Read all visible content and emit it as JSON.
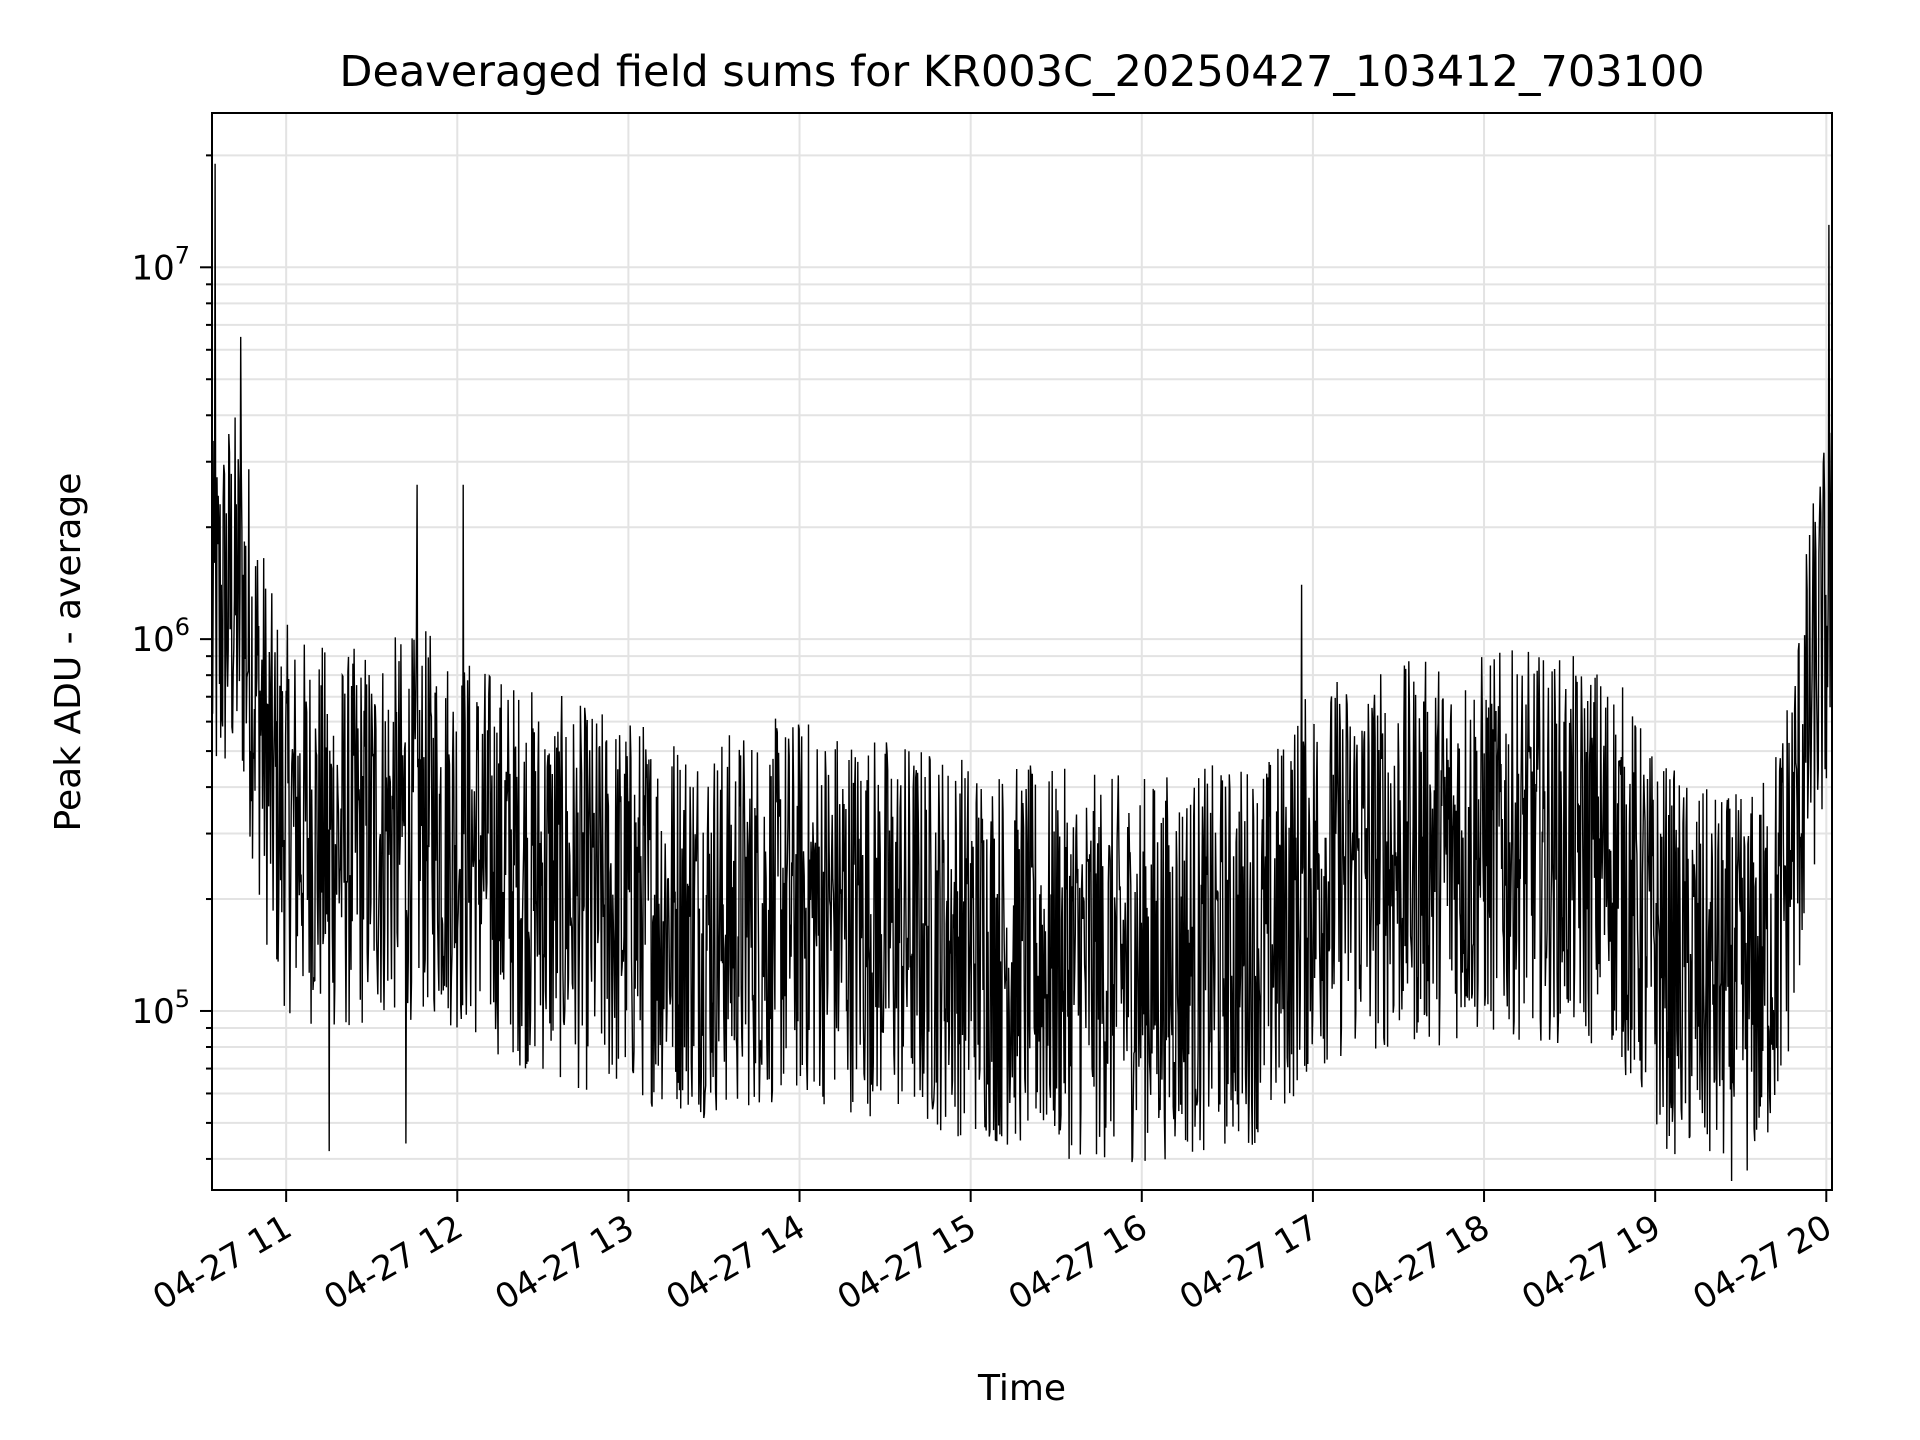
{
  "chart_data": {
    "type": "line",
    "title": "Deaveraged field sums for KR003C_20250427_103412_703100",
    "xlabel": "Time",
    "ylabel": "Peak ADU - average",
    "yscale": "log",
    "xlim": [
      "04-27 10:34",
      "04-27 20:02"
    ],
    "ylim": [
      33000,
      26000000
    ],
    "grid": true,
    "x_ticks": [
      "04-27 11",
      "04-27 12",
      "04-27 13",
      "04-27 14",
      "04-27 15",
      "04-27 16",
      "04-27 17",
      "04-27 18",
      "04-27 19",
      "04-27 20"
    ],
    "y_ticks": [
      {
        "base": "10",
        "exp": "5",
        "value": 100000
      },
      {
        "base": "10",
        "exp": "6",
        "value": 1000000
      },
      {
        "base": "10",
        "exp": "7",
        "value": 10000000
      }
    ],
    "line_color": "#000000",
    "grid_color": "#e3e3e3",
    "series": [
      {
        "x": [
          "04-27 10:34",
          "04-27 10:40",
          "04-27 10:45",
          "04-27 10:50",
          "04-27 10:55",
          "04-27 11:00",
          "04-27 11:10",
          "04-27 11:20",
          "04-27 11:30",
          "04-27 11:40",
          "04-27 11:50",
          "04-27 12:00",
          "04-27 12:15",
          "04-27 12:30",
          "04-27 12:45",
          "04-27 13:00",
          "04-27 13:15",
          "04-27 13:30",
          "04-27 13:45",
          "04-27 14:00",
          "04-27 14:15",
          "04-27 14:30",
          "04-27 14:45",
          "04-27 15:00",
          "04-27 15:15",
          "04-27 15:30",
          "04-27 15:45",
          "04-27 16:00",
          "04-27 16:15",
          "04-27 16:30",
          "04-27 16:45",
          "04-27 17:00",
          "04-27 17:15",
          "04-27 17:30",
          "04-27 17:45",
          "04-27 18:00",
          "04-27 18:15",
          "04-27 18:30",
          "04-27 18:45",
          "04-27 19:00",
          "04-27 19:15",
          "04-27 19:30",
          "04-27 19:35",
          "04-27 19:40",
          "04-27 19:45",
          "04-27 19:50",
          "04-27 19:55",
          "04-27 20:00",
          "04-27 20:02"
        ],
        "y": [
          1000000,
          1300000,
          1200000,
          700000,
          400000,
          330000,
          300000,
          280000,
          300000,
          310000,
          320000,
          290000,
          250000,
          220000,
          200000,
          190000,
          180000,
          170000,
          180000,
          190000,
          180000,
          170000,
          160000,
          150000,
          140000,
          135000,
          130000,
          130000,
          135000,
          140000,
          150000,
          230000,
          250000,
          260000,
          270000,
          280000,
          280000,
          270000,
          260000,
          150000,
          120000,
          115000,
          120000,
          140000,
          200000,
          350000,
          700000,
          1100000,
          1200000
        ],
        "spikes": [
          {
            "x": "04-27 10:35",
            "y": 19000000
          },
          {
            "x": "04-27 10:44",
            "y": 6500000
          },
          {
            "x": "04-27 11:46",
            "y": 2600000
          },
          {
            "x": "04-27 12:02",
            "y": 2600000
          },
          {
            "x": "04-27 11:15",
            "y": 42000
          },
          {
            "x": "04-27 11:42",
            "y": 44000
          },
          {
            "x": "04-27 16:56",
            "y": 1400000
          },
          {
            "x": "04-27 20:01",
            "y": 13000000
          }
        ]
      }
    ]
  }
}
